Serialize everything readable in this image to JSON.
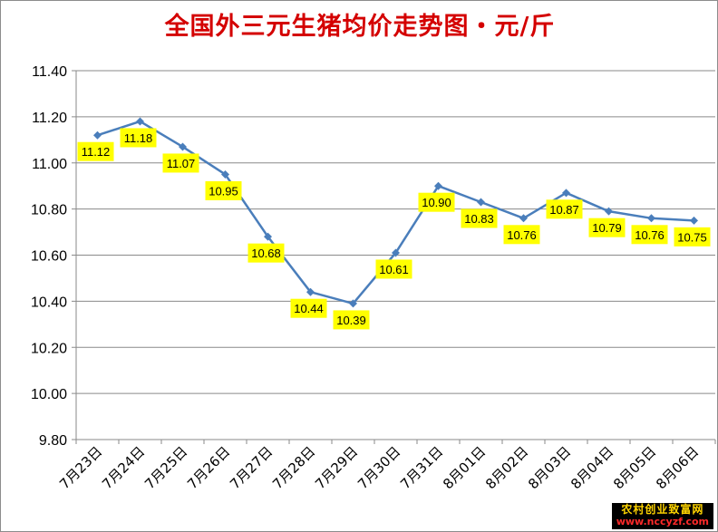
{
  "chart_data": {
    "type": "line",
    "title": "全国外三元生猪均价走势图・元/斤",
    "categories": [
      "7月23日",
      "7月24日",
      "7月25日",
      "7月26日",
      "7月27日",
      "7月28日",
      "7月29日",
      "7月30日",
      "7月31日",
      "8月01日",
      "8月02日",
      "8月03日",
      "8月04日",
      "8月05日",
      "8月06日"
    ],
    "series": [
      {
        "values": [
          11.12,
          11.18,
          11.07,
          10.95,
          10.68,
          10.44,
          10.39,
          10.61,
          10.9,
          10.83,
          10.76,
          10.87,
          10.79,
          10.76,
          10.75
        ]
      }
    ],
    "value_labels": [
      "11.12",
      "11.18",
      "11.07",
      "10.95",
      "10.68",
      "10.44",
      "10.39",
      "10.61",
      "10.90",
      "10.83",
      "10.76",
      "10.87",
      "10.79",
      "10.76",
      "10.75"
    ],
    "ylim": [
      9.8,
      11.4
    ],
    "yticks": [
      "9.80",
      "10.00",
      "10.20",
      "10.40",
      "10.60",
      "10.80",
      "11.00",
      "11.20",
      "11.40"
    ],
    "grid": true,
    "line_color": "#4a7ebb",
    "label_bg_color": "#ffff00"
  },
  "watermark": {
    "line1": "农村创业致富网",
    "line2": "www.nccyzf.com"
  }
}
